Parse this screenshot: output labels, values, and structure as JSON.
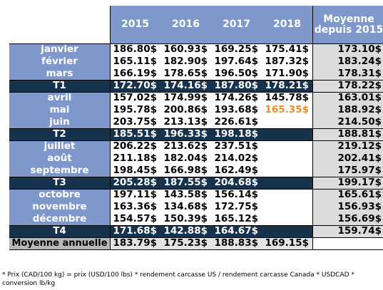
{
  "chart_data": {
    "type": "table",
    "columns": [
      "2015",
      "2016",
      "2017",
      "2018",
      "Moyenne depuis 2015"
    ],
    "rows": [
      {
        "label": "janvier",
        "values": [
          "186.80$",
          "160.93$",
          "169.25$",
          "175.41$",
          "173.10$"
        ]
      },
      {
        "label": "février",
        "values": [
          "165.11$",
          "182.90$",
          "197.64$",
          "187.32$",
          "183.24$"
        ]
      },
      {
        "label": "mars",
        "values": [
          "166.19$",
          "178.65$",
          "196.50$",
          "171.90$",
          "178.31$"
        ]
      },
      {
        "label": "T1",
        "quarter": true,
        "values": [
          "172.70$",
          "174.16$",
          "187.80$",
          "178.21$",
          "178.22$"
        ]
      },
      {
        "label": "avril",
        "values": [
          "157.02$",
          "174.99$",
          "174.26$",
          "145.78$",
          "163.01$"
        ]
      },
      {
        "label": "mai",
        "values": [
          "195.78$",
          "200.86$",
          "193.68$",
          "165.35$",
          "188.92$"
        ],
        "highlight": [
          3
        ]
      },
      {
        "label": "juin",
        "values": [
          "203.75$",
          "213.13$",
          "226.61$",
          "",
          "214.50$"
        ]
      },
      {
        "label": "T2",
        "quarter": true,
        "values": [
          "185.51$",
          "196.33$",
          "198.18$",
          "",
          "188.81$"
        ]
      },
      {
        "label": "juillet",
        "values": [
          "206.22$",
          "213.62$",
          "237.51$",
          "",
          "219.12$"
        ]
      },
      {
        "label": "août",
        "values": [
          "211.18$",
          "182.04$",
          "214.02$",
          "",
          "202.41$"
        ]
      },
      {
        "label": "septembre",
        "values": [
          "198.45$",
          "166.98$",
          "162.49$",
          "",
          "175.97$"
        ]
      },
      {
        "label": "T3",
        "quarter": true,
        "values": [
          "205.28$",
          "187.55$",
          "204.68$",
          "",
          "199.17$"
        ]
      },
      {
        "label": "octobre",
        "values": [
          "197.11$",
          "143.58$",
          "156.14$",
          "",
          "165.61$"
        ]
      },
      {
        "label": "novembre",
        "values": [
          "163.36$",
          "134.68$",
          "172.75$",
          "",
          "156.93$"
        ]
      },
      {
        "label": "décembre",
        "values": [
          "154.57$",
          "150.39$",
          "165.12$",
          "",
          "156.69$"
        ]
      },
      {
        "label": "T4",
        "quarter": true,
        "values": [
          "171.68$",
          "142.88$",
          "164.67$",
          "",
          "159.74$"
        ]
      },
      {
        "label": "Moyenne annuelle",
        "annual": true,
        "values": [
          "183.79$",
          "175.23$",
          "188.83$",
          "169.15$",
          ""
        ]
      }
    ]
  },
  "colors": {
    "header_bg": "#7f98cb",
    "quarter_bg": "#16324d",
    "average_column_bg": "#dcdcdc",
    "highlight_text": "#f28a2c"
  },
  "footnote": "* Prix (CAD/100 kg) = prix (USD/100 lbs) * rendement carcasse US / rendement carcasse Canada * USDCAD * conversion lb/kg"
}
